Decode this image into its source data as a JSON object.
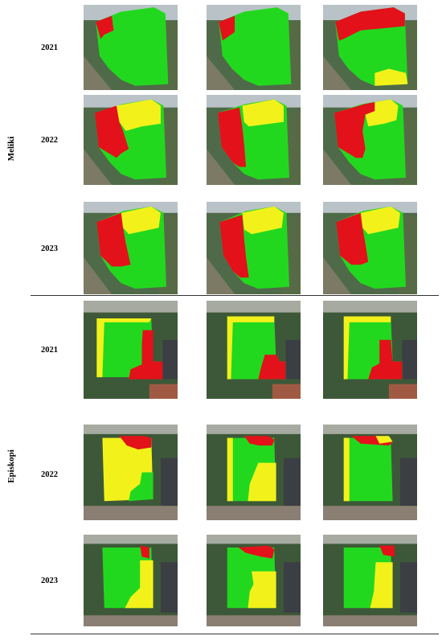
{
  "colors": {
    "good": "#22d81f",
    "medium": "#f2f21a",
    "poor": "#e3111a",
    "meliki_imagery": "#4f6a48",
    "episkopi_imagery": "#3d5838"
  },
  "sites": [
    {
      "name": "Meliki",
      "rows": [
        {
          "year": "2021"
        },
        {
          "year": "2022"
        },
        {
          "year": "2023"
        }
      ]
    },
    {
      "name": "Episkopi",
      "rows": [
        {
          "year": "2021"
        },
        {
          "year": "2022"
        },
        {
          "year": "2023"
        }
      ]
    }
  ]
}
